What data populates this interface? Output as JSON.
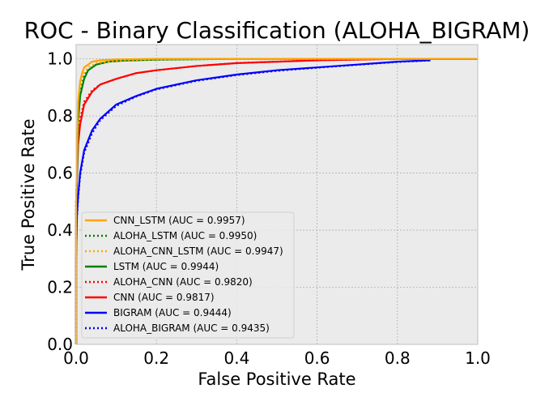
{
  "chart_data": {
    "type": "line",
    "title": "ROC - Binary Classification (ALOHA_BIGRAM)",
    "xlabel": "False Positive Rate",
    "ylabel": "True Positive Rate",
    "xlim": [
      0.0,
      1.0
    ],
    "ylim": [
      0.0,
      1.05
    ],
    "x_ticks": [
      "0.0",
      "0.2",
      "0.4",
      "0.6",
      "0.8",
      "1.0"
    ],
    "y_ticks": [
      "0.0",
      "0.2",
      "0.4",
      "0.6",
      "0.8",
      "1.0"
    ],
    "grid": true,
    "legend_position": "lower-left",
    "series": [
      {
        "name": "CNN_LSTM (AUC = 0.9957)",
        "color": "#ffa500",
        "style": "solid",
        "x": [
          0,
          0.0,
          0.005,
          0.01,
          0.015,
          0.02,
          0.03,
          0.04,
          0.06,
          0.1,
          0.2,
          0.4,
          0.8,
          1.0
        ],
        "y": [
          0,
          0.5,
          0.85,
          0.92,
          0.95,
          0.97,
          0.98,
          0.99,
          0.995,
          0.998,
          1.0,
          1.0,
          1.0,
          1.0
        ]
      },
      {
        "name": "ALOHA_LSTM (AUC = 0.9950)",
        "color": "#008000",
        "style": "dotted",
        "x": [
          0,
          0.0,
          0.005,
          0.01,
          0.02,
          0.03,
          0.05,
          0.08,
          0.12,
          0.2,
          0.4,
          0.8,
          1.0
        ],
        "y": [
          0,
          0.5,
          0.8,
          0.88,
          0.94,
          0.96,
          0.98,
          0.99,
          0.995,
          0.998,
          1.0,
          1.0,
          1.0
        ]
      },
      {
        "name": "ALOHA_CNN_LSTM (AUC = 0.9947)",
        "color": "#ffa500",
        "style": "dotted",
        "x": [
          0,
          0.0,
          0.005,
          0.01,
          0.02,
          0.03,
          0.05,
          0.08,
          0.12,
          0.2,
          0.4,
          0.8,
          1.0
        ],
        "y": [
          0,
          0.5,
          0.82,
          0.9,
          0.95,
          0.97,
          0.985,
          0.99,
          0.995,
          0.998,
          1.0,
          1.0,
          1.0
        ]
      },
      {
        "name": "LSTM (AUC = 0.9944)",
        "color": "#008000",
        "style": "solid",
        "x": [
          0,
          0.0,
          0.005,
          0.01,
          0.02,
          0.03,
          0.05,
          0.08,
          0.12,
          0.2,
          0.4,
          0.8,
          1.0
        ],
        "y": [
          0,
          0.45,
          0.78,
          0.87,
          0.93,
          0.96,
          0.98,
          0.99,
          0.994,
          0.997,
          1.0,
          1.0,
          1.0
        ]
      },
      {
        "name": "ALOHA_CNN (AUC = 0.9820)",
        "color": "#ff0000",
        "style": "dotted",
        "x": [
          0,
          0.0,
          0.005,
          0.01,
          0.02,
          0.04,
          0.06,
          0.1,
          0.15,
          0.2,
          0.3,
          0.4,
          0.6,
          0.8,
          0.88,
          1.0
        ],
        "y": [
          0,
          0.5,
          0.72,
          0.79,
          0.85,
          0.89,
          0.91,
          0.93,
          0.95,
          0.96,
          0.975,
          0.985,
          0.995,
          1.0,
          1.0,
          1.0
        ]
      },
      {
        "name": "CNN (AUC = 0.9817)",
        "color": "#ff0000",
        "style": "solid",
        "x": [
          0,
          0.0,
          0.005,
          0.01,
          0.02,
          0.04,
          0.06,
          0.1,
          0.15,
          0.2,
          0.3,
          0.4,
          0.6,
          0.8,
          0.88,
          1.0
        ],
        "y": [
          0,
          0.5,
          0.7,
          0.77,
          0.84,
          0.885,
          0.91,
          0.93,
          0.95,
          0.96,
          0.975,
          0.985,
          0.995,
          1.0,
          1.0,
          1.0
        ]
      },
      {
        "name": "BIGRAM (AUC = 0.9444)",
        "color": "#0000ff",
        "style": "solid",
        "x": [
          0,
          0.0,
          0.002,
          0.005,
          0.01,
          0.02,
          0.04,
          0.06,
          0.1,
          0.15,
          0.2,
          0.3,
          0.4,
          0.5,
          0.6,
          0.7,
          0.8,
          0.88,
          0.88,
          1.0
        ],
        "y": [
          0,
          0.3,
          0.45,
          0.52,
          0.6,
          0.68,
          0.75,
          0.79,
          0.84,
          0.87,
          0.895,
          0.925,
          0.945,
          0.96,
          0.97,
          0.98,
          0.99,
          0.995,
          1.0,
          1.0
        ]
      },
      {
        "name": "ALOHA_BIGRAM (AUC = 0.9435)",
        "color": "#0000ff",
        "style": "dotted",
        "x": [
          0,
          0.0,
          0.002,
          0.005,
          0.01,
          0.02,
          0.04,
          0.06,
          0.1,
          0.15,
          0.2,
          0.3,
          0.4,
          0.5,
          0.6,
          0.7,
          0.8,
          0.88,
          0.88,
          1.0
        ],
        "y": [
          0,
          0.3,
          0.44,
          0.51,
          0.59,
          0.67,
          0.74,
          0.785,
          0.835,
          0.868,
          0.893,
          0.923,
          0.943,
          0.958,
          0.969,
          0.979,
          0.989,
          0.994,
          1.0,
          1.0
        ]
      }
    ]
  }
}
